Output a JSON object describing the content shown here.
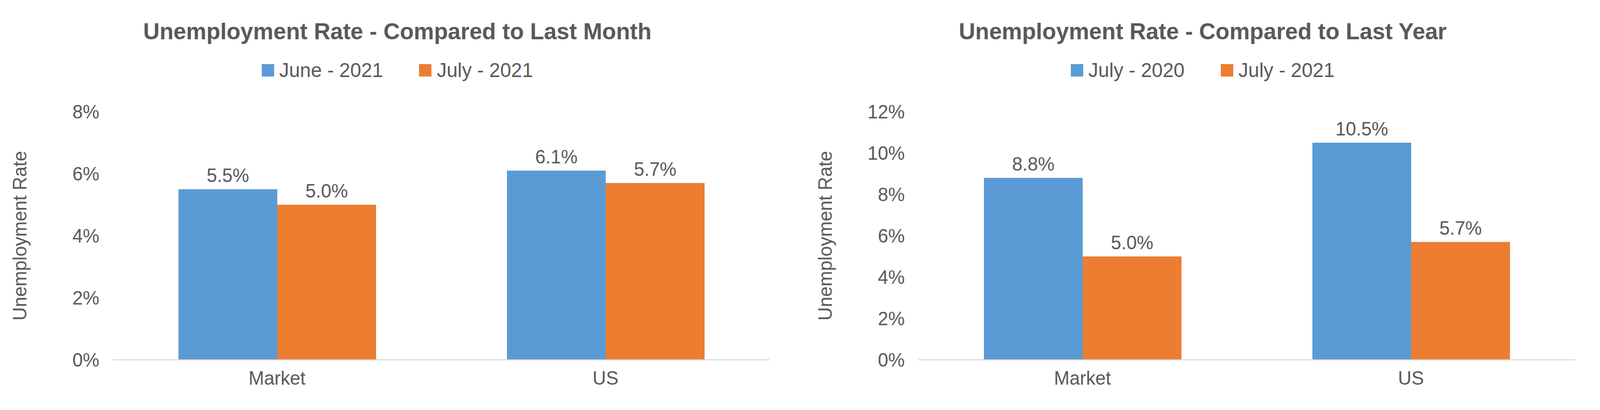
{
  "chart_data": [
    {
      "type": "bar",
      "title": "Unemployment Rate - Compared to Last Month",
      "y_label": "Unemployment Rate",
      "categories": [
        "Market",
        "US"
      ],
      "series": [
        {
          "name": "June - 2021",
          "color": "#5b9bd5",
          "values": [
            5.5,
            6.1
          ],
          "value_labels": [
            "5.5%",
            "6.1%"
          ]
        },
        {
          "name": "July - 2021",
          "color": "#ed7d31",
          "values": [
            5.0,
            5.7
          ],
          "value_labels": [
            "5.0%",
            "5.7%"
          ]
        }
      ],
      "ylim": [
        0,
        8
      ],
      "yticks": [
        {
          "value": 0,
          "label": "0%"
        },
        {
          "value": 2,
          "label": "2%"
        },
        {
          "value": 4,
          "label": "4%"
        },
        {
          "value": 6,
          "label": "6%"
        },
        {
          "value": 8,
          "label": "8%"
        }
      ],
      "data_labels": true,
      "legend": "top",
      "grid": false
    },
    {
      "type": "bar",
      "title": "Unemployment Rate - Compared to Last Year",
      "y_label": "Unemployment Rate",
      "categories": [
        "Market",
        "US"
      ],
      "series": [
        {
          "name": "July - 2020",
          "color": "#5b9bd5",
          "values": [
            8.8,
            10.5
          ],
          "value_labels": [
            "8.8%",
            "10.5%"
          ]
        },
        {
          "name": "July - 2021",
          "color": "#ed7d31",
          "values": [
            5.0,
            5.7
          ],
          "value_labels": [
            "5.0%",
            "5.7%"
          ]
        }
      ],
      "ylim": [
        0,
        12
      ],
      "yticks": [
        {
          "value": 0,
          "label": "0%"
        },
        {
          "value": 2,
          "label": "2%"
        },
        {
          "value": 4,
          "label": "4%"
        },
        {
          "value": 6,
          "label": "6%"
        },
        {
          "value": 8,
          "label": "8%"
        },
        {
          "value": 10,
          "label": "10%"
        },
        {
          "value": 12,
          "label": "12%"
        }
      ],
      "data_labels": true,
      "legend": "top",
      "grid": false
    }
  ]
}
